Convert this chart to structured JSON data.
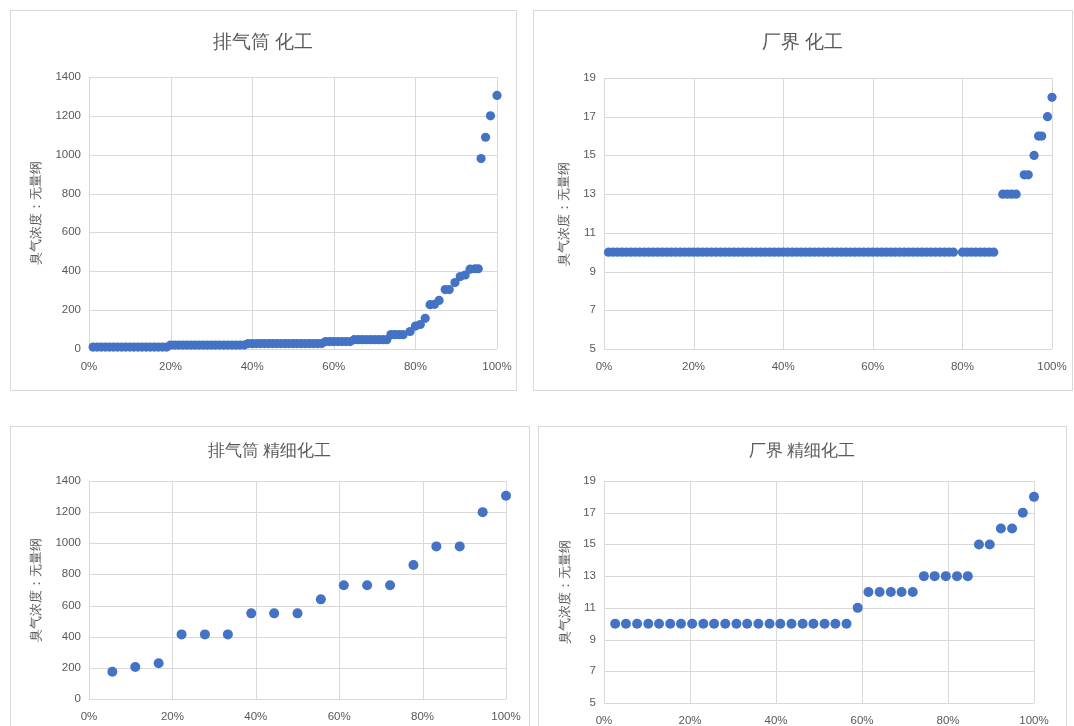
{
  "chart_data": [
    {
      "type": "scatter",
      "title": "排气筒 化工",
      "ylabel": "臭气浓度：无量纲",
      "color": "#4472c4",
      "marker": "circle",
      "grid": true,
      "xlim": [
        0,
        100
      ],
      "xticks": [
        {
          "value": 0,
          "label": "0%"
        },
        {
          "value": 20,
          "label": "20%"
        },
        {
          "value": 40,
          "label": "40%"
        },
        {
          "value": 60,
          "label": "60%"
        },
        {
          "value": 80,
          "label": "80%"
        },
        {
          "value": 100,
          "label": "100%"
        }
      ],
      "ylim": [
        0,
        1400
      ],
      "yticks": [
        0,
        200,
        400,
        600,
        800,
        1000,
        1200,
        1400
      ],
      "x": [
        1,
        2,
        3,
        4,
        5,
        6,
        7,
        8,
        9,
        10,
        11,
        12,
        13,
        14,
        15,
        16,
        17,
        18,
        19,
        20,
        21,
        22,
        23,
        24,
        25,
        26,
        27,
        28,
        29,
        30,
        31,
        32,
        33,
        34,
        35,
        36,
        37,
        38,
        39,
        40,
        41,
        42,
        43,
        44,
        45,
        46,
        47,
        48,
        49,
        50,
        51,
        52,
        53,
        54,
        55,
        56,
        57,
        58,
        59,
        60,
        61,
        62,
        63,
        64,
        65,
        66,
        67,
        68,
        69,
        70,
        71,
        72,
        73,
        74,
        75,
        76,
        77,
        78.7,
        80,
        81.2,
        82.4,
        83.6,
        84.7,
        85.8,
        87.3,
        88.3,
        89.7,
        91,
        92.2,
        93.4,
        94.6,
        95.4,
        96.1,
        97.2,
        98.4,
        100
      ],
      "values": [
        10,
        10,
        10,
        10,
        10,
        10,
        10,
        10,
        10,
        10,
        10,
        10,
        10,
        10,
        10,
        10,
        10,
        10,
        10,
        20,
        20,
        20,
        20,
        20,
        20,
        20,
        20,
        20,
        20,
        20,
        20,
        20,
        20,
        20,
        20,
        20,
        20,
        20,
        28,
        28,
        28,
        28,
        28,
        28,
        28,
        28,
        28,
        28,
        28,
        28,
        28,
        28,
        28,
        28,
        28,
        28,
        28,
        38,
        38,
        38,
        38,
        38,
        38,
        38,
        48,
        48,
        48,
        48,
        48,
        48,
        48,
        48,
        48,
        74,
        74,
        74,
        74,
        90,
        118,
        126,
        158,
        228,
        230,
        250,
        306,
        306,
        342,
        373,
        381,
        411,
        413,
        413,
        980,
        1090,
        1200,
        1305
      ]
    },
    {
      "type": "scatter",
      "title": "厂界 化工",
      "ylabel": "臭气浓度：无量纲",
      "color": "#4472c4",
      "marker": "circle",
      "grid": true,
      "xlim": [
        0,
        100
      ],
      "xticks": [
        {
          "value": 0,
          "label": "0%"
        },
        {
          "value": 20,
          "label": "20%"
        },
        {
          "value": 40,
          "label": "40%"
        },
        {
          "value": 60,
          "label": "60%"
        },
        {
          "value": 80,
          "label": "80%"
        },
        {
          "value": 100,
          "label": "100%"
        }
      ],
      "ylim": [
        5,
        19
      ],
      "yticks": [
        5,
        7,
        9,
        11,
        13,
        15,
        17,
        19
      ],
      "x": [
        1,
        2,
        3,
        4,
        5,
        6,
        7,
        8,
        9,
        10,
        11,
        12,
        13,
        14,
        15,
        16,
        17,
        18,
        19,
        20,
        21,
        22,
        23,
        24,
        25,
        26,
        27,
        28,
        29,
        30,
        31,
        32,
        33,
        34,
        35,
        36,
        37,
        38,
        39,
        40,
        41,
        42,
        43,
        44,
        45,
        46,
        47,
        48,
        49,
        50,
        51,
        52,
        53,
        54,
        55,
        56,
        57,
        58,
        59,
        60,
        61,
        62,
        63,
        64,
        65,
        66,
        67,
        68,
        69,
        70,
        71,
        72,
        73,
        74,
        75,
        76,
        77,
        78,
        80,
        81,
        82,
        83,
        84,
        85,
        86,
        87,
        89,
        90,
        91,
        92,
        93.8,
        94.7,
        96,
        97,
        97.7,
        99,
        100
      ],
      "values": [
        10,
        10,
        10,
        10,
        10,
        10,
        10,
        10,
        10,
        10,
        10,
        10,
        10,
        10,
        10,
        10,
        10,
        10,
        10,
        10,
        10,
        10,
        10,
        10,
        10,
        10,
        10,
        10,
        10,
        10,
        10,
        10,
        10,
        10,
        10,
        10,
        10,
        10,
        10,
        10,
        10,
        10,
        10,
        10,
        10,
        10,
        10,
        10,
        10,
        10,
        10,
        10,
        10,
        10,
        10,
        10,
        10,
        10,
        10,
        10,
        10,
        10,
        10,
        10,
        10,
        10,
        10,
        10,
        10,
        10,
        10,
        10,
        10,
        10,
        10,
        10,
        10,
        10,
        10,
        10,
        10,
        10,
        10,
        10,
        10,
        10,
        13,
        13,
        13,
        13,
        14,
        14,
        15,
        16,
        16,
        17,
        18
      ]
    },
    {
      "type": "scatter",
      "title": "排气筒 精细化工",
      "ylabel": "臭气浓度：无量纲",
      "color": "#4472c4",
      "marker": "circle",
      "grid": true,
      "xlim": [
        0,
        100
      ],
      "xticks": [
        {
          "value": 0,
          "label": "0%"
        },
        {
          "value": 20,
          "label": "20%"
        },
        {
          "value": 40,
          "label": "40%"
        },
        {
          "value": 60,
          "label": "60%"
        },
        {
          "value": 80,
          "label": "80%"
        },
        {
          "value": 100,
          "label": "100%"
        }
      ],
      "ylim": [
        0,
        1400
      ],
      "yticks": [
        0,
        200,
        400,
        600,
        800,
        1000,
        1200,
        1400
      ],
      "x": [
        5.6,
        11.1,
        16.7,
        22.2,
        27.8,
        33.3,
        38.9,
        44.4,
        50,
        55.6,
        61.1,
        66.7,
        72.2,
        77.8,
        83.3,
        88.9,
        94.4,
        100
      ],
      "values": [
        175,
        205,
        230,
        415,
        415,
        415,
        550,
        550,
        550,
        640,
        730,
        730,
        730,
        860,
        980,
        980,
        1200,
        1305
      ]
    },
    {
      "type": "scatter",
      "title": "厂界 精细化工",
      "ylabel": "臭气浓度：无量纲",
      "color": "#4472c4",
      "marker": "circle",
      "grid": true,
      "xlim": [
        0,
        100
      ],
      "xticks": [
        {
          "value": 0,
          "label": "0%"
        },
        {
          "value": 20,
          "label": "20%"
        },
        {
          "value": 40,
          "label": "40%"
        },
        {
          "value": 60,
          "label": "60%"
        },
        {
          "value": 80,
          "label": "80%"
        },
        {
          "value": 100,
          "label": "100%"
        }
      ],
      "ylim": [
        5,
        19
      ],
      "yticks": [
        5,
        7,
        9,
        11,
        13,
        15,
        17,
        19
      ],
      "x": [
        2.6,
        5.1,
        7.7,
        10.3,
        12.8,
        15.4,
        17.9,
        20.5,
        23.1,
        25.6,
        28.2,
        30.8,
        33.3,
        35.9,
        38.5,
        41,
        43.6,
        46.2,
        48.7,
        51.3,
        53.8,
        56.4,
        59,
        61.5,
        64.1,
        66.7,
        69.2,
        71.8,
        74.4,
        76.9,
        79.5,
        82.1,
        84.6,
        87.2,
        89.7,
        92.3,
        94.9,
        97.4,
        100
      ],
      "values": [
        10,
        10,
        10,
        10,
        10,
        10,
        10,
        10,
        10,
        10,
        10,
        10,
        10,
        10,
        10,
        10,
        10,
        10,
        10,
        10,
        10,
        10,
        11,
        12,
        12,
        12,
        12,
        12,
        13,
        13,
        13,
        13,
        13,
        15,
        15,
        16,
        16,
        17,
        18
      ]
    }
  ]
}
